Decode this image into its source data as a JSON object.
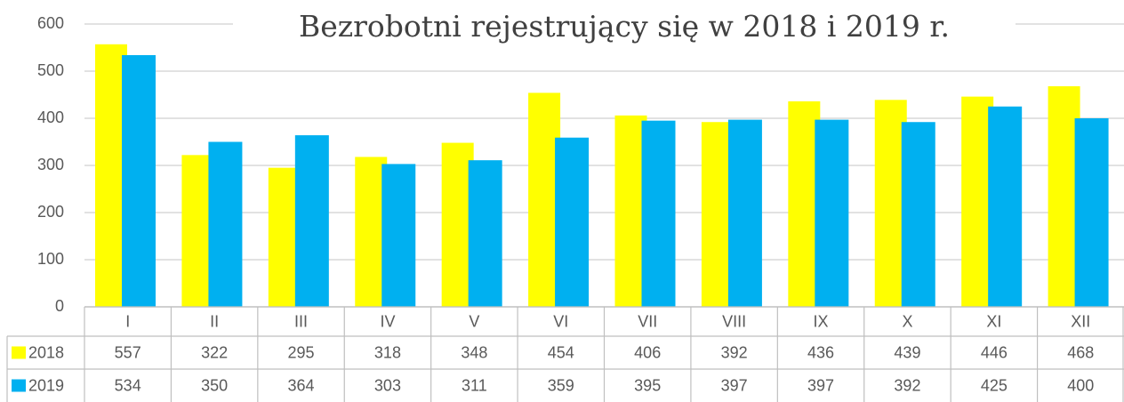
{
  "chart_data": {
    "type": "bar",
    "title": "Bezrobotni rejestrujący się w 2018 i 2019 r.",
    "categories": [
      "I",
      "II",
      "III",
      "IV",
      "V",
      "VI",
      "VII",
      "VIII",
      "IX",
      "X",
      "XI",
      "XII"
    ],
    "series": [
      {
        "name": "2018",
        "color": "#ffff00",
        "values": [
          557,
          322,
          295,
          318,
          348,
          454,
          406,
          392,
          436,
          439,
          446,
          468
        ]
      },
      {
        "name": "2019",
        "color": "#00b0f0",
        "values": [
          534,
          350,
          364,
          303,
          311,
          359,
          395,
          397,
          397,
          392,
          425,
          400
        ]
      }
    ],
    "ylim": [
      0,
      600
    ],
    "yticks": [
      0,
      100,
      200,
      300,
      400,
      500,
      600
    ],
    "grid": true
  }
}
